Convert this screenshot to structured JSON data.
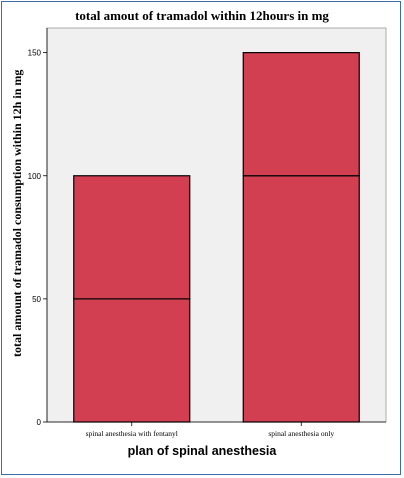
{
  "chart_data": {
    "type": "bar",
    "title": "total amout of tramadol within 12hours in mg",
    "xlabel": "plan of spinal anesthesia",
    "ylabel": "total amount of tramadol consumption within 12h in mg",
    "categories": [
      "spinal anesthesia with fentanyl",
      "spinal anesthesia only"
    ],
    "series": [
      {
        "values": [
          50,
          100
        ]
      },
      {
        "values": [
          50,
          50
        ]
      }
    ],
    "totals": [
      100,
      150
    ],
    "ylim": [
      0,
      160
    ],
    "yticks": [
      0,
      50,
      100,
      150
    ],
    "grid": false,
    "legend": "none",
    "colors": {
      "bar": "#d23f50",
      "plot_bg": "#f0f0f0",
      "frame": "#3d6da8"
    }
  }
}
